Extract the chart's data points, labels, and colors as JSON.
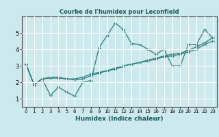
{
  "title": "Courbe de l'humidex pour Leconfield",
  "xlabel": "Humidex (Indice chaleur)",
  "bg_color": "#cce9ed",
  "line_color": "#2a7a78",
  "grid_color": "#ffffff",
  "xlim": [
    -0.5,
    23.5
  ],
  "ylim": [
    0.5,
    6.0
  ],
  "yticks": [
    1,
    2,
    3,
    4,
    5
  ],
  "xticks": [
    0,
    1,
    2,
    3,
    4,
    5,
    6,
    7,
    8,
    9,
    10,
    11,
    12,
    13,
    14,
    15,
    16,
    17,
    18,
    19,
    20,
    21,
    22,
    23
  ],
  "lines": [
    [
      3.1,
      1.85,
      2.2,
      1.2,
      1.7,
      1.4,
      1.15,
      2.0,
      2.1,
      4.1,
      4.85,
      5.6,
      5.2,
      4.35,
      4.3,
      4.0,
      3.7,
      4.0,
      3.0,
      3.0,
      4.3,
      4.3,
      5.2,
      4.7
    ],
    [
      3.1,
      1.85,
      2.2,
      2.3,
      2.3,
      2.2,
      2.2,
      2.3,
      2.5,
      2.6,
      2.7,
      2.85,
      3.0,
      3.1,
      3.2,
      3.3,
      3.4,
      3.55,
      3.6,
      3.7,
      3.85,
      4.0,
      4.3,
      4.5
    ],
    [
      3.1,
      1.85,
      2.2,
      2.25,
      2.25,
      2.2,
      2.15,
      2.2,
      2.4,
      2.55,
      2.7,
      2.8,
      2.95,
      3.1,
      3.2,
      3.35,
      3.45,
      3.6,
      3.7,
      3.75,
      3.95,
      4.15,
      4.4,
      4.7
    ]
  ]
}
